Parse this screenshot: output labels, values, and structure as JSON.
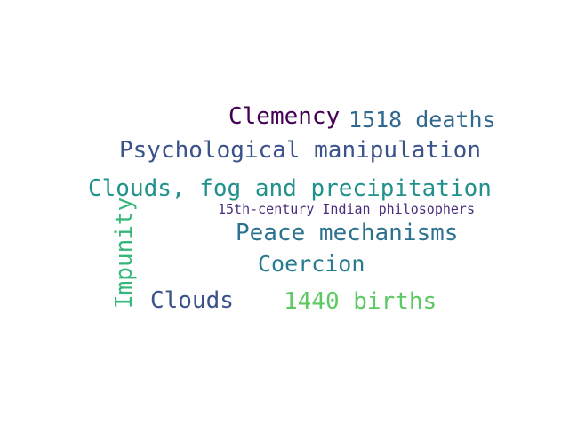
{
  "word_cloud": {
    "words": [
      {
        "id": "clemency",
        "text": "Clemency",
        "color": "#440154",
        "orientation": "horizontal"
      },
      {
        "id": "deaths",
        "text": "1518 deaths",
        "color": "#31688e",
        "orientation": "horizontal"
      },
      {
        "id": "psych",
        "text": "Psychological manipulation",
        "color": "#3b528b",
        "orientation": "horizontal"
      },
      {
        "id": "clouds_fog",
        "text": "Clouds, fog and precipitation",
        "color": "#21918c",
        "orientation": "horizontal"
      },
      {
        "id": "philos",
        "text": "15th-century Indian philosophers",
        "color": "#472d7b",
        "orientation": "horizontal"
      },
      {
        "id": "peace",
        "text": "Peace mechanisms",
        "color": "#2c728e",
        "orientation": "horizontal"
      },
      {
        "id": "coercion",
        "text": "Coercion",
        "color": "#287c8e",
        "orientation": "horizontal"
      },
      {
        "id": "clouds",
        "text": "Clouds",
        "color": "#3b528b",
        "orientation": "horizontal"
      },
      {
        "id": "births",
        "text": "1440 births",
        "color": "#5ec962",
        "orientation": "horizontal"
      },
      {
        "id": "impunity",
        "text": "Impunity",
        "color": "#35b779",
        "orientation": "vertical"
      }
    ]
  }
}
